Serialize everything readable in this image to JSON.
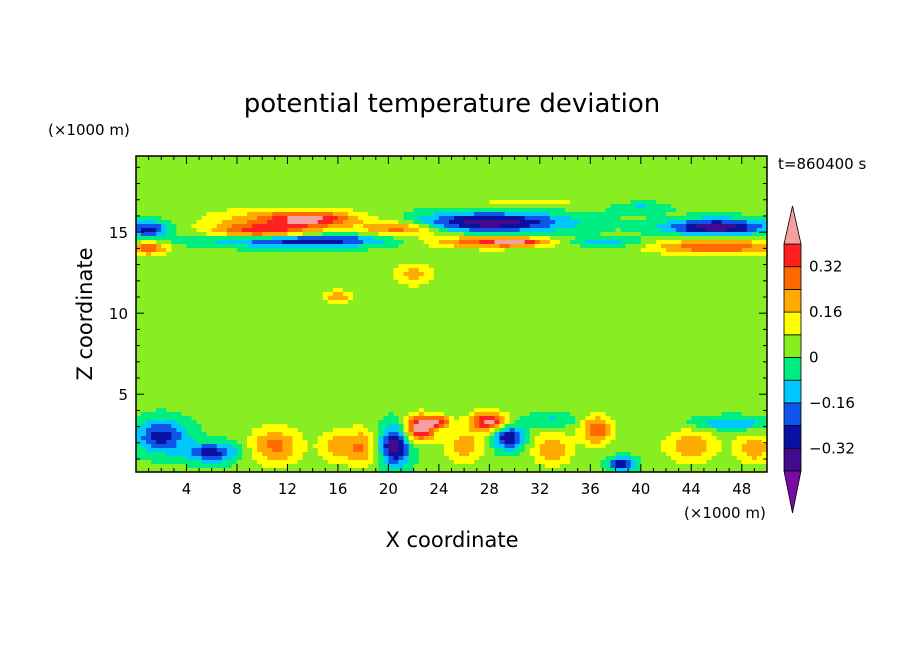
{
  "chart_data": {
    "type": "heatmap",
    "title": "potential temperature deviation",
    "xlabel": "X coordinate",
    "ylabel": "Z coordinate",
    "x_unit": "(×1000 m)",
    "y_unit": "(×1000 m)",
    "time_label": "t=860400 s",
    "xlim": [
      0,
      50
    ],
    "ylim": [
      0.2,
      19.7
    ],
    "x_ticks": [
      4,
      8,
      12,
      16,
      20,
      24,
      28,
      32,
      36,
      40,
      44,
      48
    ],
    "y_ticks": [
      5,
      10,
      15
    ],
    "colorbar": {
      "levels": [
        -0.48,
        -0.4,
        -0.32,
        -0.24,
        -0.16,
        -0.08,
        0,
        0.08,
        0.16,
        0.24,
        0.32,
        0.4,
        0.48
      ],
      "tick_labels": [
        "-0.32",
        "-0.16",
        "0",
        "0.16",
        "0.32"
      ],
      "tick_values": [
        -0.32,
        -0.16,
        0,
        0.16,
        0.32
      ],
      "colors": [
        "#7a0aa8",
        "#420a8c",
        "#0a10a0",
        "#0e55ea",
        "#00c8ff",
        "#00ee80",
        "#88ee22",
        "#ffff00",
        "#ffaa00",
        "#ff6a00",
        "#ff2020",
        "#f5a0a0"
      ]
    },
    "background_value": 0.02,
    "features": [
      {
        "x": 12,
        "z": 15.8,
        "rx": 6,
        "rz": 0.7,
        "v": 0.22
      },
      {
        "x": 14,
        "z": 15.8,
        "rx": 3,
        "rz": 0.4,
        "v": 0.24
      },
      {
        "x": 13,
        "z": 14.5,
        "rx": 7,
        "rz": 0.4,
        "v": -0.36
      },
      {
        "x": 10,
        "z": 15.0,
        "rx": 4,
        "rz": 0.5,
        "v": 0.32
      },
      {
        "x": 21,
        "z": 15.2,
        "rx": 3,
        "rz": 0.5,
        "v": 0.28
      },
      {
        "x": 28,
        "z": 15.6,
        "rx": 6,
        "rz": 0.6,
        "v": -0.4
      },
      {
        "x": 31,
        "z": 16.8,
        "rx": 5,
        "rz": 0.3,
        "v": 0.1
      },
      {
        "x": 28,
        "z": 14.4,
        "rx": 5,
        "rz": 0.4,
        "v": 0.3
      },
      {
        "x": 30,
        "z": 14.4,
        "rx": 2,
        "rz": 0.2,
        "v": 0.2
      },
      {
        "x": 37,
        "z": 14.4,
        "rx": 3,
        "rz": 0.3,
        "v": -0.16
      },
      {
        "x": 46,
        "z": 15.3,
        "rx": 4,
        "rz": 0.5,
        "v": -0.4
      },
      {
        "x": 46,
        "z": 14.1,
        "rx": 5,
        "rz": 0.5,
        "v": 0.3
      },
      {
        "x": 1,
        "z": 15.2,
        "rx": 1.5,
        "rz": 0.5,
        "v": -0.3
      },
      {
        "x": 1,
        "z": 14.0,
        "rx": 1.5,
        "rz": 0.4,
        "v": 0.3
      },
      {
        "x": 40,
        "z": 16.5,
        "rx": 2,
        "rz": 0.3,
        "v": -0.12
      },
      {
        "x": 22,
        "z": 12.4,
        "rx": 1.5,
        "rz": 0.7,
        "v": 0.18
      },
      {
        "x": 16,
        "z": 11.0,
        "rx": 1.2,
        "rz": 0.4,
        "v": 0.2
      },
      {
        "x": 2,
        "z": 2.4,
        "rx": 2,
        "rz": 1.0,
        "v": -0.3
      },
      {
        "x": 6,
        "z": 1.4,
        "rx": 2,
        "rz": 0.6,
        "v": -0.3
      },
      {
        "x": 11,
        "z": 1.8,
        "rx": 2,
        "rz": 1.2,
        "v": 0.24
      },
      {
        "x": 16,
        "z": 1.8,
        "rx": 1.5,
        "rz": 1.0,
        "v": 0.18
      },
      {
        "x": 18,
        "z": 1.7,
        "rx": 1.2,
        "rz": 1.2,
        "v": 0.2
      },
      {
        "x": 20.5,
        "z": 1.8,
        "rx": 1.2,
        "rz": 1.2,
        "v": -0.4
      },
      {
        "x": 22.5,
        "z": 2.9,
        "rx": 1.2,
        "rz": 0.8,
        "v": 0.45
      },
      {
        "x": 24,
        "z": 3.3,
        "rx": 1.0,
        "rz": 0.4,
        "v": 0.3
      },
      {
        "x": 26,
        "z": 1.8,
        "rx": 1.5,
        "rz": 1.0,
        "v": 0.2
      },
      {
        "x": 28,
        "z": 3.3,
        "rx": 1.5,
        "rz": 0.6,
        "v": 0.42
      },
      {
        "x": 29.5,
        "z": 2.4,
        "rx": 1.2,
        "rz": 0.8,
        "v": -0.34
      },
      {
        "x": 33,
        "z": 1.6,
        "rx": 1.5,
        "rz": 1.0,
        "v": 0.22
      },
      {
        "x": 36.5,
        "z": 2.8,
        "rx": 1.2,
        "rz": 0.9,
        "v": 0.3
      },
      {
        "x": 38.5,
        "z": 0.7,
        "rx": 1.0,
        "rz": 0.4,
        "v": -0.34
      },
      {
        "x": 44,
        "z": 1.8,
        "rx": 2,
        "rz": 1.0,
        "v": 0.22
      },
      {
        "x": 49,
        "z": 1.6,
        "rx": 1.5,
        "rz": 0.9,
        "v": 0.2
      },
      {
        "x": 47,
        "z": 3.2,
        "rx": 3,
        "rz": 0.4,
        "v": -0.18
      },
      {
        "x": 33,
        "z": 3.4,
        "rx": 2,
        "rz": 0.4,
        "v": -0.12
      }
    ]
  }
}
